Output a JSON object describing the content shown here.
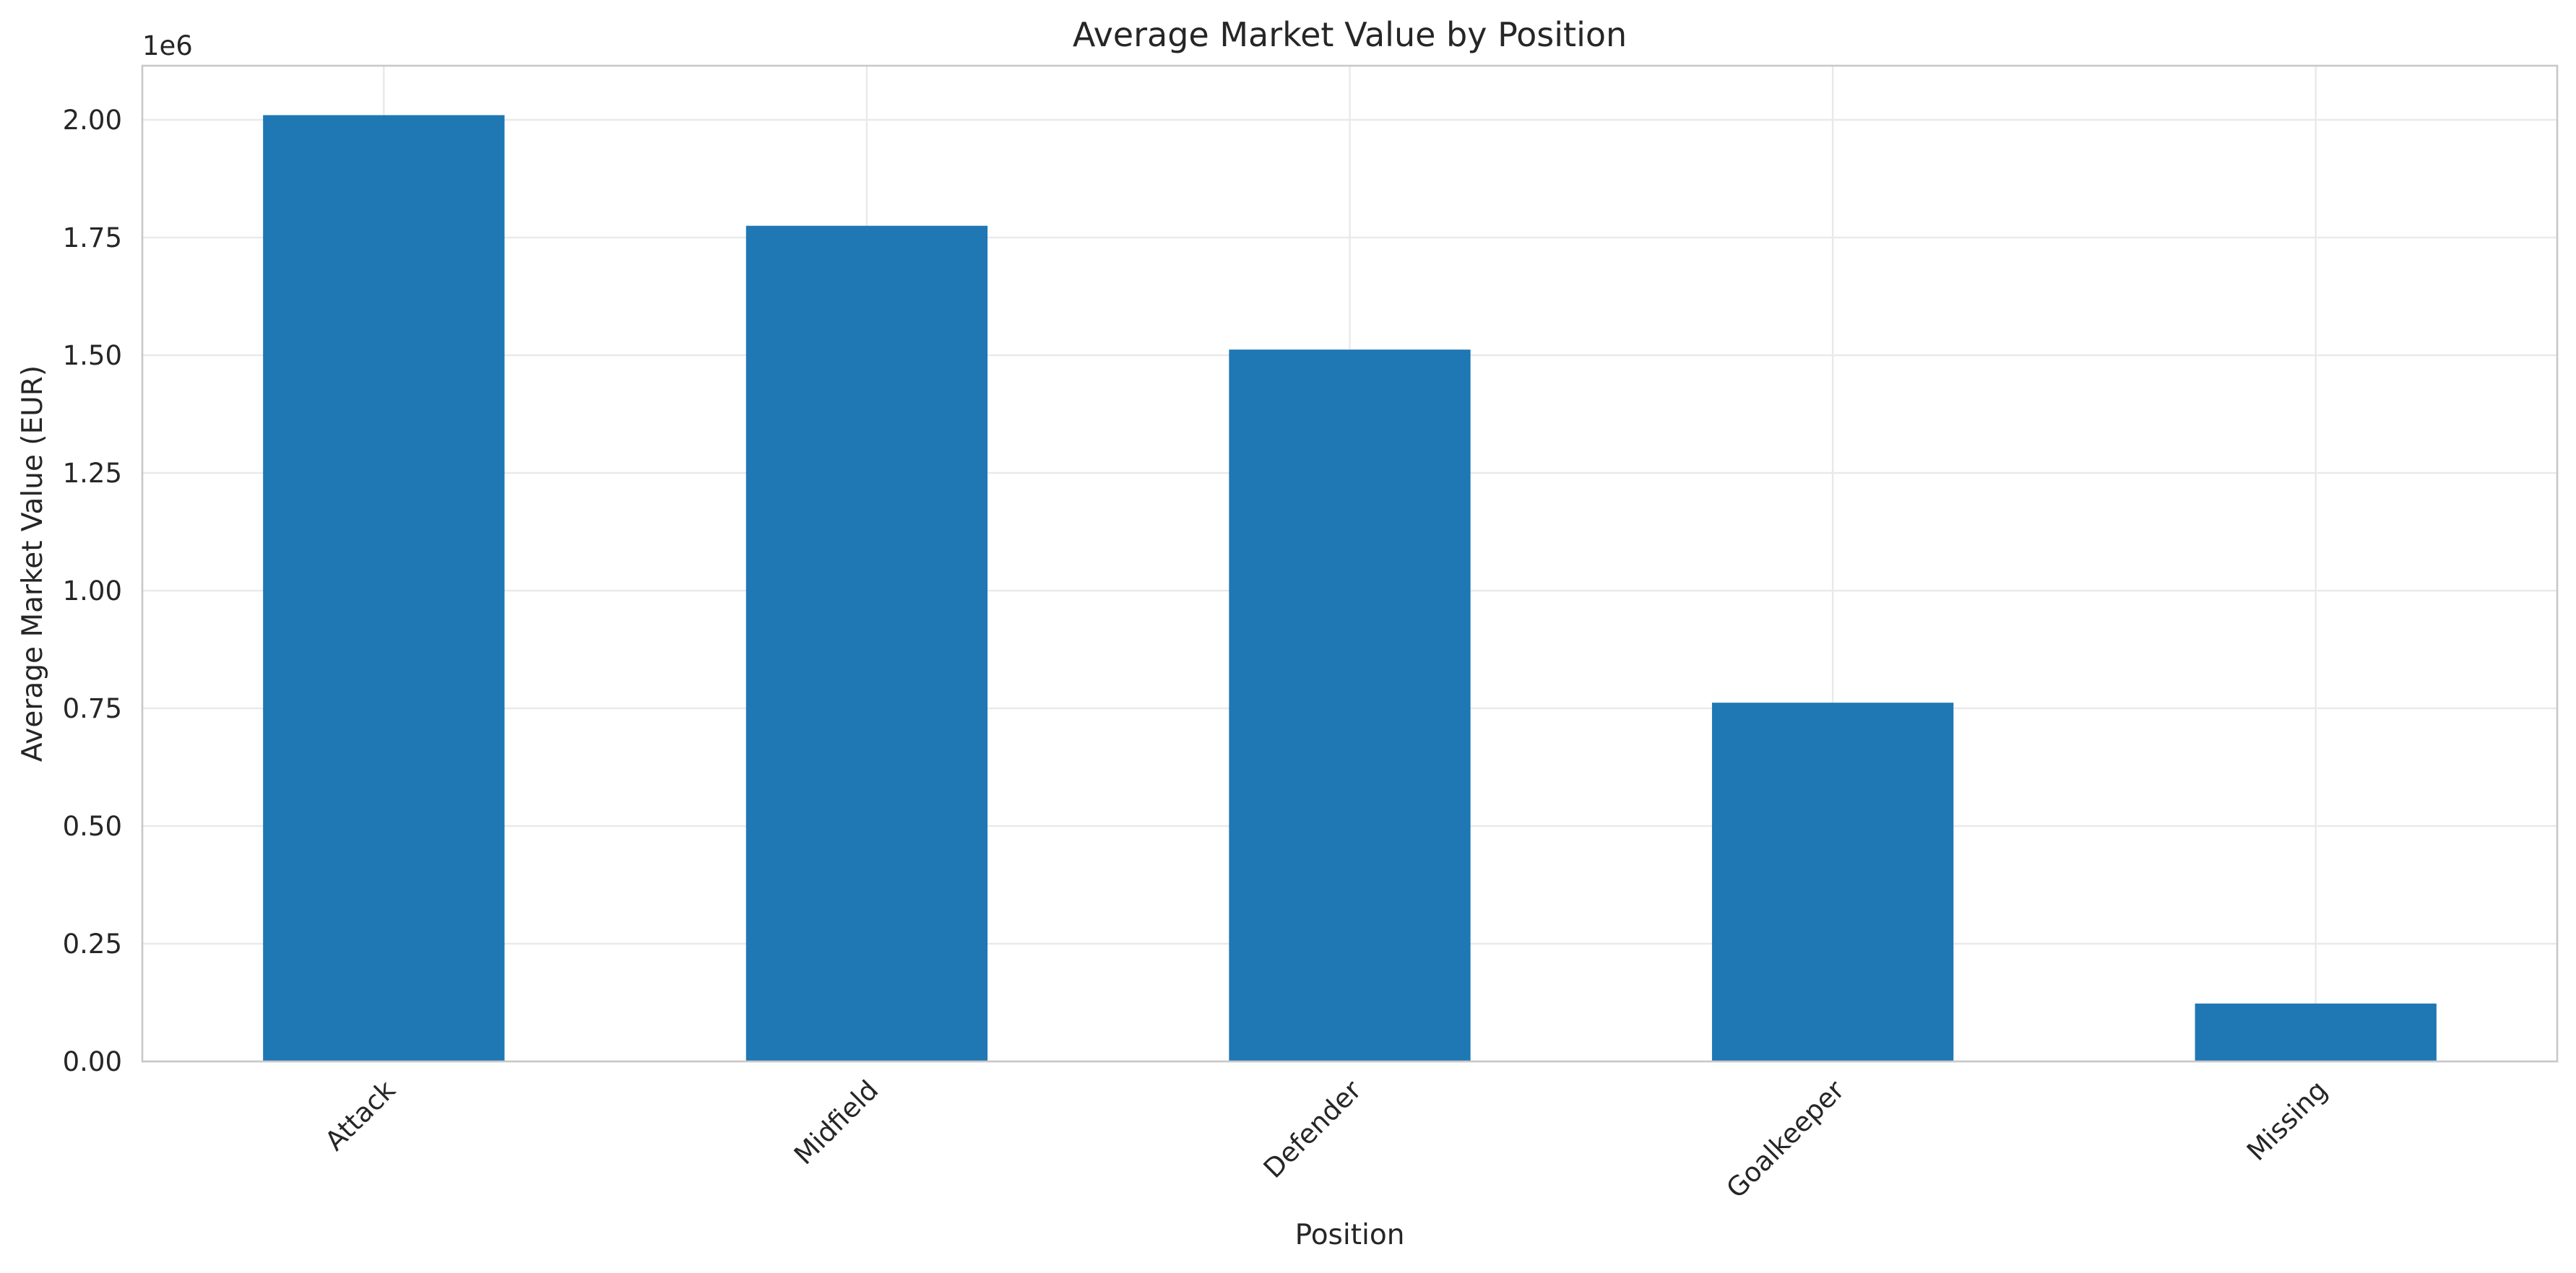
{
  "chart_data": {
    "type": "bar",
    "title": "Average Market Value by Position",
    "xlabel": "Position",
    "ylabel": "Average Market Value (EUR)",
    "y_offset_label": "1e6",
    "categories": [
      "Attack",
      "Midfield",
      "Defender",
      "Goalkeeper",
      "Missing"
    ],
    "values": [
      2010000,
      1775000,
      1512000,
      762000,
      123000
    ],
    "ylim": [
      0,
      2115000
    ],
    "yticks": [
      0,
      250000,
      500000,
      750000,
      1000000,
      1250000,
      1500000,
      1750000,
      2000000
    ],
    "ytick_labels": [
      "0.00",
      "0.25",
      "0.50",
      "0.75",
      "1.00",
      "1.25",
      "1.50",
      "1.75",
      "2.00"
    ],
    "grid": true,
    "legend": "none",
    "bar_color": "#1f77b4",
    "tick_label_rotation_deg": 45
  }
}
